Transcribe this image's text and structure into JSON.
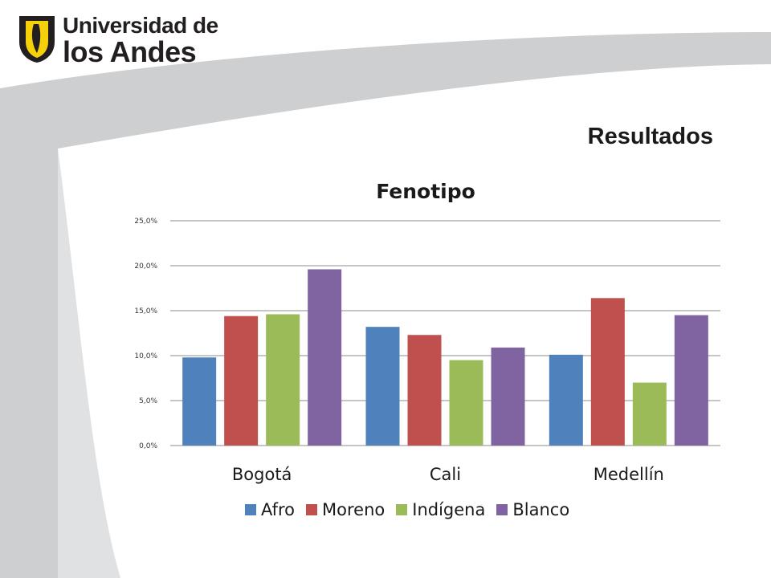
{
  "header": {
    "logo_line1": "Universidad de",
    "logo_line2": "los Andes",
    "slide_title": "Resultados"
  },
  "colors": {
    "swoosh": "#cdcfd1",
    "grid": "#8c8c8c",
    "logo_yellow": "#f5d10a",
    "logo_dark": "#231f20"
  },
  "chart_data": {
    "type": "bar",
    "title": "Fenotipo",
    "xlabel": "",
    "ylabel": "",
    "categories": [
      "Bogotá",
      "Cali",
      "Medellín"
    ],
    "ylim": [
      0,
      25
    ],
    "yticks": [
      "0,0%",
      "5,0%",
      "10,0%",
      "15,0%",
      "20,0%",
      "25,0%"
    ],
    "grid": true,
    "legend": "bottom",
    "series": [
      {
        "name": "Afro",
        "color": "#4f81bd",
        "values": [
          9.8,
          13.2,
          10.1
        ]
      },
      {
        "name": "Moreno",
        "color": "#c0504d",
        "values": [
          14.4,
          12.3,
          16.4
        ]
      },
      {
        "name": "Indígena",
        "color": "#9bbb59",
        "values": [
          14.6,
          9.5,
          7.0
        ]
      },
      {
        "name": "Blanco",
        "color": "#8064a2",
        "values": [
          19.6,
          10.9,
          14.5
        ]
      }
    ]
  }
}
